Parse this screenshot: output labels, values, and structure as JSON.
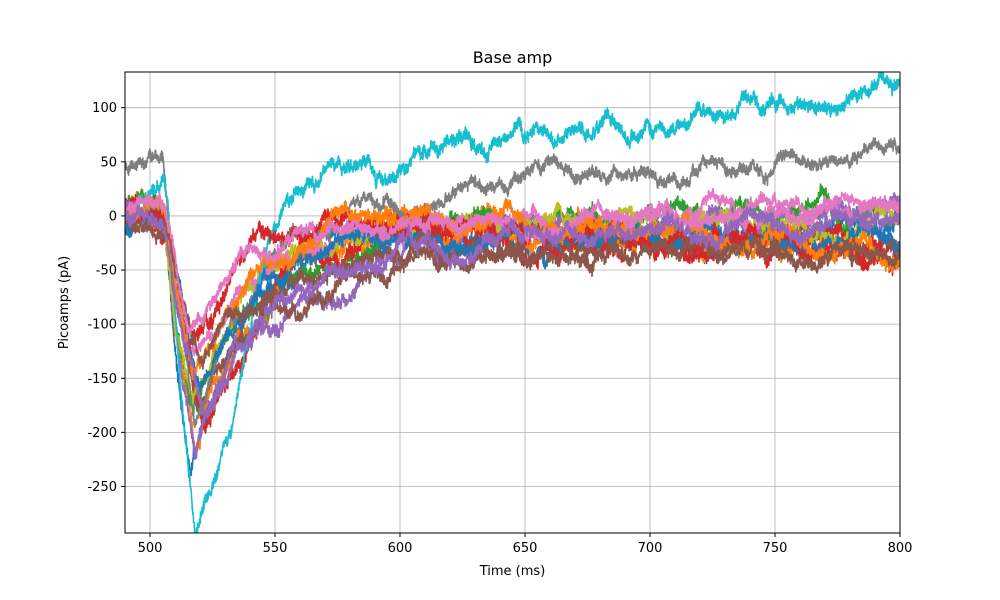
{
  "chart_data": {
    "type": "line",
    "title": "Base amp",
    "xlabel": "Time (ms)",
    "ylabel": "Picoamps (pA)",
    "xlim": [
      490,
      800
    ],
    "ylim": [
      -293,
      133
    ],
    "xticks": [
      500,
      550,
      600,
      650,
      700,
      750,
      800
    ],
    "yticks": [
      100,
      50,
      0,
      -50,
      -100,
      -150,
      -200,
      -250
    ],
    "grid": true,
    "legend": "none",
    "colors": {
      "blue": "#1f77b4",
      "orange": "#ff7f0e",
      "green": "#2ca02c",
      "red": "#d62728",
      "purple": "#9467bd",
      "brown": "#8c564b",
      "pink": "#e377c2",
      "gray": "#7f7f7f",
      "olive": "#bcbd22",
      "cyan": "#17becf",
      "grid": "#b0b0b0"
    },
    "series": [
      {
        "color": "#1f77b4",
        "baseline": 5,
        "peak": -230,
        "peak_t": 516,
        "recover": 0,
        "noise": 9,
        "x": [
          490,
          500,
          506,
          510,
          516,
          525,
          535,
          550,
          575,
          600,
          650,
          700,
          750,
          800
        ],
        "y": [
          5,
          5,
          0,
          -120,
          -230,
          -170,
          -110,
          -60,
          -25,
          -15,
          -25,
          -20,
          -20,
          -10
        ]
      },
      {
        "color": "#ff7f0e",
        "baseline": 8,
        "peak": -215,
        "peak_t": 518,
        "recover": 0,
        "noise": 9,
        "x": [
          490,
          500,
          506,
          510,
          518,
          528,
          540,
          555,
          580,
          600,
          650,
          700,
          750,
          800
        ],
        "y": [
          8,
          8,
          2,
          -110,
          -215,
          -160,
          -100,
          -50,
          -15,
          -5,
          -15,
          -20,
          -25,
          -30
        ]
      },
      {
        "color": "#2ca02c",
        "baseline": 5,
        "peak": -185,
        "peak_t": 517,
        "recover": 0,
        "noise": 8,
        "x": [
          490,
          500,
          506,
          510,
          517,
          528,
          540,
          555,
          580,
          600,
          650,
          700,
          750,
          800
        ],
        "y": [
          5,
          5,
          0,
          -90,
          -185,
          -130,
          -90,
          -60,
          -30,
          -10,
          -5,
          0,
          5,
          5
        ]
      },
      {
        "color": "#d62728",
        "baseline": 6,
        "peak": -200,
        "peak_t": 522,
        "recover": 0,
        "noise": 9,
        "x": [
          490,
          500,
          506,
          511,
          522,
          532,
          542,
          555,
          575,
          600,
          650,
          700,
          750,
          800
        ],
        "y": [
          6,
          6,
          0,
          -80,
          -200,
          -150,
          -90,
          -40,
          -20,
          -10,
          -20,
          -25,
          -30,
          -35
        ]
      },
      {
        "color": "#9467bd",
        "baseline": 2,
        "peak": -210,
        "peak_t": 518,
        "recover": 0,
        "noise": 8,
        "x": [
          490,
          500,
          506,
          510,
          518,
          530,
          545,
          560,
          585,
          600,
          650,
          700,
          750,
          800
        ],
        "y": [
          2,
          2,
          -2,
          -100,
          -210,
          -150,
          -100,
          -80,
          -60,
          -30,
          -10,
          -10,
          -5,
          5
        ]
      },
      {
        "color": "#8c564b",
        "baseline": -10,
        "peak": -180,
        "peak_t": 519,
        "recover": 0,
        "noise": 8,
        "x": [
          490,
          500,
          506,
          511,
          519,
          530,
          545,
          560,
          585,
          600,
          650,
          700,
          750,
          800
        ],
        "y": [
          -10,
          -10,
          -12,
          -80,
          -180,
          -120,
          -80,
          -60,
          -40,
          -35,
          -30,
          -25,
          -25,
          -20
        ]
      },
      {
        "color": "#bcbd22",
        "baseline": 3,
        "peak": -170,
        "peak_t": 517,
        "recover": 0,
        "noise": 8,
        "x": [
          490,
          500,
          506,
          510,
          517,
          528,
          540,
          555,
          580,
          600,
          650,
          700,
          750,
          800
        ],
        "y": [
          3,
          3,
          -2,
          -90,
          -170,
          -110,
          -70,
          -40,
          -20,
          -10,
          -10,
          -5,
          -10,
          -5
        ]
      },
      {
        "color": "#7f7f7f",
        "baseline": 60,
        "peak": -190,
        "peak_t": 518,
        "recover": 0,
        "noise": 7,
        "x": [
          490,
          500,
          505,
          510,
          518,
          530,
          545,
          560,
          580,
          600,
          625,
          650,
          675,
          700,
          725,
          750,
          775,
          800
        ],
        "y": [
          48,
          62,
          58,
          -60,
          -190,
          -110,
          -60,
          -20,
          0,
          15,
          25,
          35,
          40,
          40,
          40,
          45,
          55,
          60
        ]
      },
      {
        "color": "#e377c2",
        "baseline": 5,
        "peak": -140,
        "peak_t": 516,
        "recover": 0,
        "noise": 7,
        "x": [
          490,
          500,
          506,
          510,
          516,
          525,
          535,
          550,
          575,
          600,
          650,
          700,
          750,
          800
        ],
        "y": [
          5,
          5,
          0,
          -70,
          -140,
          -110,
          -70,
          -40,
          -20,
          -10,
          -5,
          0,
          2,
          5
        ]
      },
      {
        "color": "#17becf",
        "baseline": 20,
        "peak": -290,
        "peak_t": 518,
        "recover": 0,
        "noise": 8,
        "x": [
          490,
          500,
          505,
          507,
          512,
          518,
          525,
          535,
          545,
          555,
          565,
          580,
          600,
          625,
          650,
          675,
          700,
          725,
          740,
          760,
          780,
          800
        ],
        "y": [
          0,
          20,
          35,
          20,
          -150,
          -290,
          -240,
          -160,
          -60,
          20,
          30,
          40,
          55,
          65,
          75,
          80,
          85,
          95,
          120,
          90,
          110,
          125
        ]
      },
      {
        "color": "#1f77b4",
        "baseline": -8,
        "peak": -160,
        "peak_t": 519,
        "recover": 0,
        "noise": 8,
        "x": [
          490,
          500,
          506,
          511,
          519,
          530,
          545,
          560,
          580,
          600,
          650,
          700,
          750,
          800
        ],
        "y": [
          -8,
          -8,
          -10,
          -70,
          -160,
          -110,
          -70,
          -40,
          -25,
          -20,
          -25,
          -20,
          -25,
          -20
        ]
      },
      {
        "color": "#d62728",
        "baseline": 4,
        "peak": -120,
        "peak_t": 515,
        "recover": 0,
        "noise": 9,
        "x": [
          490,
          500,
          506,
          510,
          515,
          522,
          532,
          545,
          560,
          580,
          600,
          650,
          700,
          750,
          800
        ],
        "y": [
          4,
          4,
          0,
          -50,
          -120,
          -90,
          -60,
          -30,
          -10,
          0,
          -5,
          -20,
          -25,
          -30,
          -30
        ]
      },
      {
        "color": "#ff7f0e",
        "baseline": 2,
        "peak": -150,
        "peak_t": 517,
        "recover": 0,
        "noise": 8,
        "x": [
          490,
          500,
          506,
          510,
          517,
          528,
          540,
          555,
          580,
          600,
          650,
          700,
          750,
          800
        ],
        "y": [
          2,
          2,
          -2,
          -70,
          -150,
          -100,
          -60,
          -30,
          -10,
          -5,
          -10,
          -15,
          -25,
          -35
        ]
      },
      {
        "color": "#8c564b",
        "baseline": -5,
        "peak": -130,
        "peak_t": 520,
        "recover": 0,
        "noise": 8,
        "x": [
          490,
          500,
          506,
          511,
          520,
          532,
          548,
          565,
          585,
          600,
          650,
          700,
          750,
          800
        ],
        "y": [
          -5,
          -5,
          -8,
          -60,
          -130,
          -100,
          -80,
          -65,
          -55,
          -40,
          -35,
          -30,
          -35,
          -30
        ]
      },
      {
        "color": "#e377c2",
        "baseline": 6,
        "peak": -100,
        "peak_t": 515,
        "recover": 0,
        "noise": 7,
        "x": [
          490,
          500,
          506,
          510,
          515,
          525,
          540,
          555,
          575,
          600,
          650,
          700,
          750,
          800
        ],
        "y": [
          6,
          6,
          2,
          -40,
          -100,
          -70,
          -40,
          -25,
          -15,
          -10,
          -5,
          0,
          2,
          3
        ]
      },
      {
        "color": "#9467bd",
        "baseline": 0,
        "peak": -170,
        "peak_t": 521,
        "recover": 0,
        "noise": 8,
        "x": [
          490,
          500,
          506,
          511,
          521,
          535,
          550,
          565,
          585,
          600,
          650,
          700,
          750,
          800
        ],
        "y": [
          0,
          0,
          -4,
          -80,
          -170,
          -120,
          -90,
          -70,
          -50,
          -30,
          -20,
          -15,
          -10,
          0
        ]
      }
    ]
  }
}
